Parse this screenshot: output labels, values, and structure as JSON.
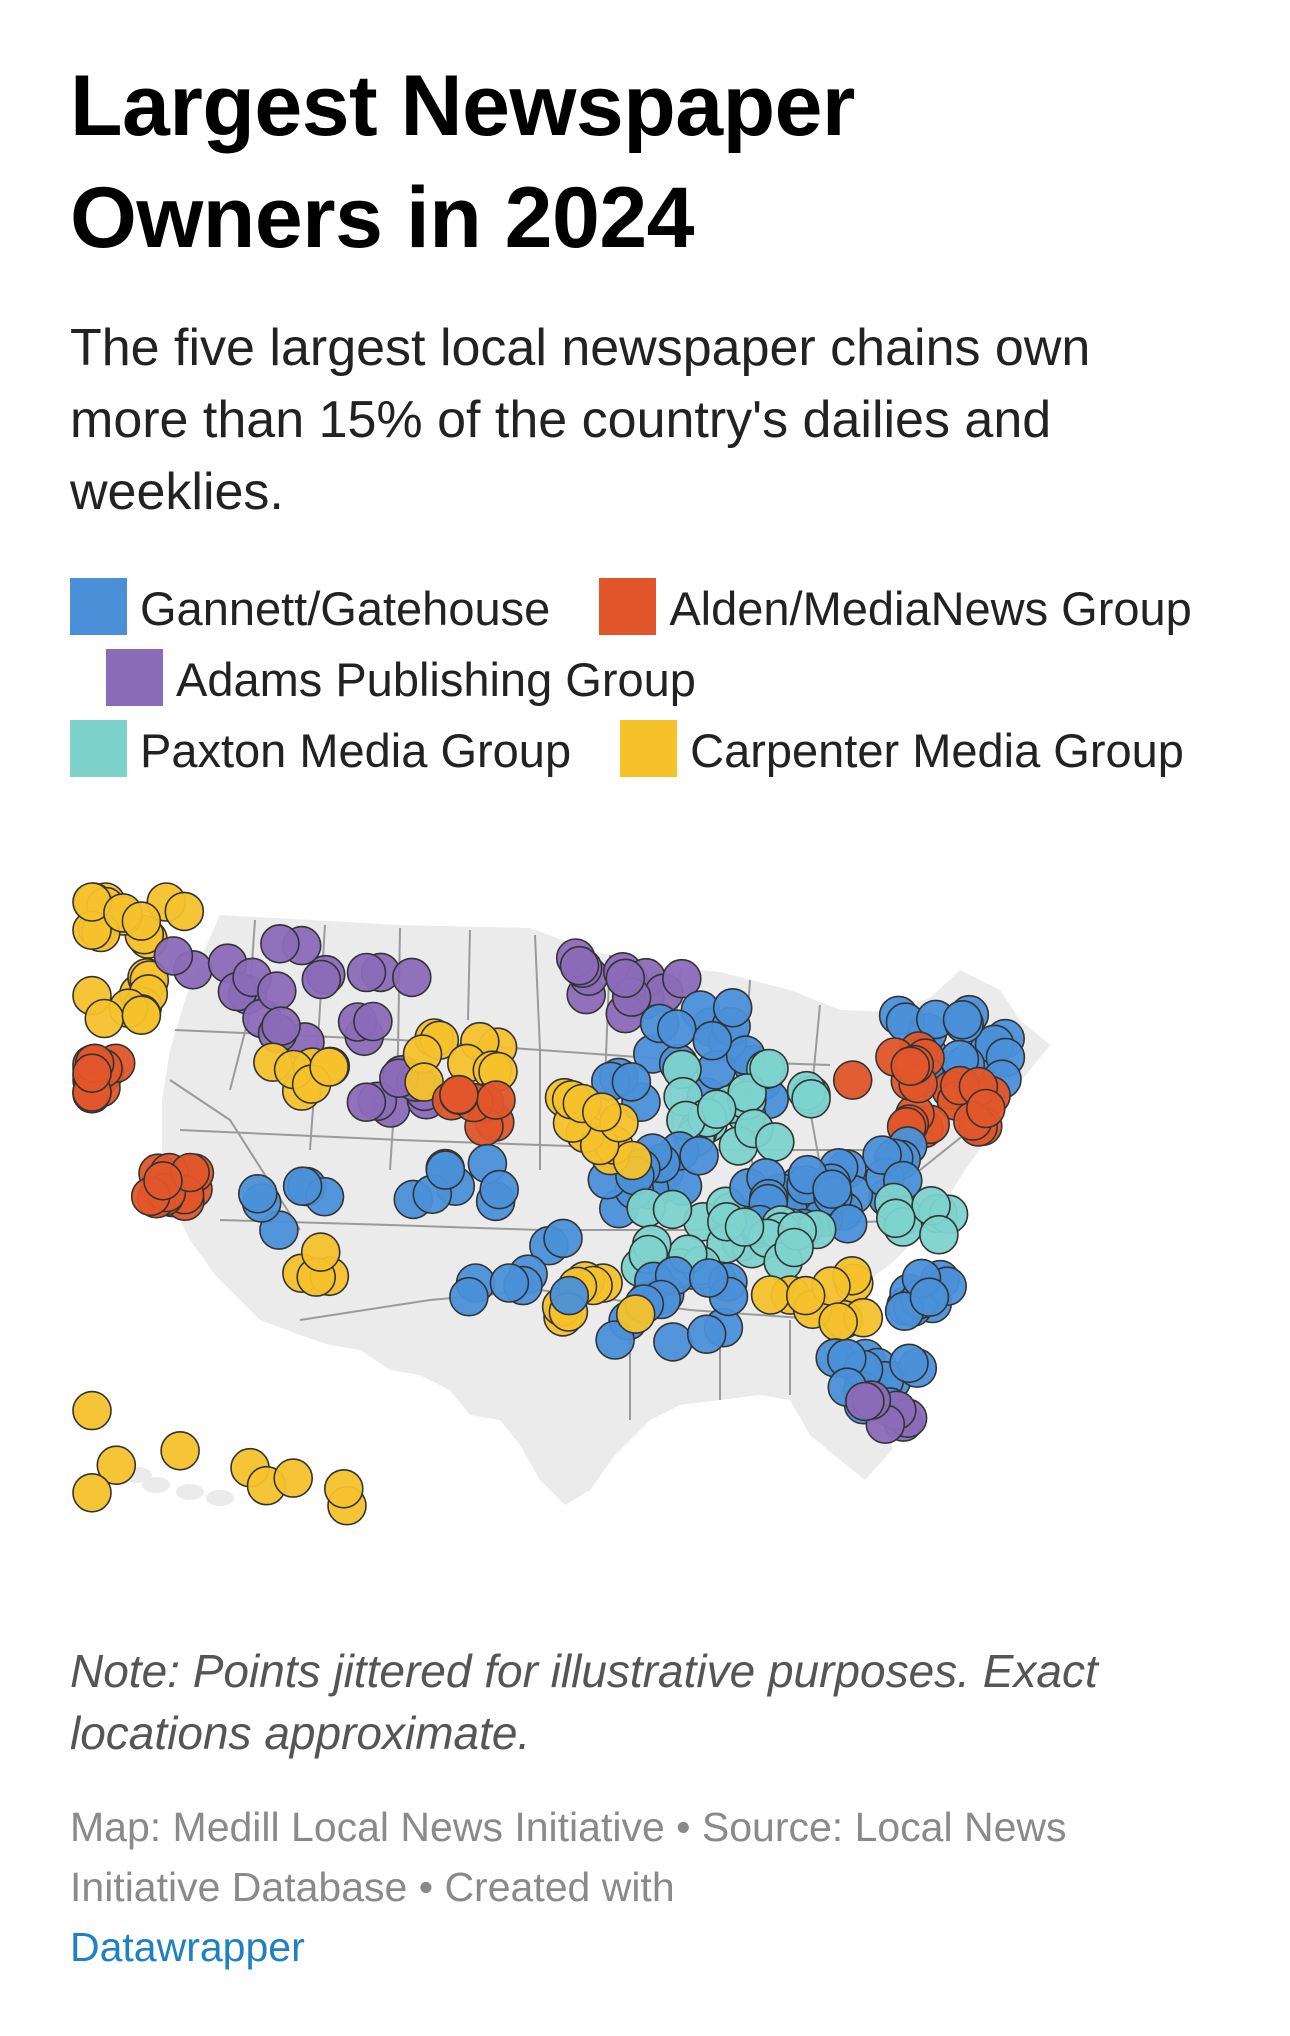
{
  "header": {
    "title": "Largest Newspaper Owners in 2024",
    "subtitle": "The five largest local newspaper chains own more than 15% of the country's dailies and weeklies."
  },
  "legend": [
    {
      "label": "Gannett/Gatehouse",
      "color": "#4a90d9"
    },
    {
      "label": "Alden/MediaNews Group",
      "color": "#e0562a"
    },
    {
      "label": "Adams Publishing Group",
      "color": "#8a6bb8"
    },
    {
      "label": "Paxton Media Group",
      "color": "#7dd3cc"
    },
    {
      "label": "Carpenter Media Group",
      "color": "#f6c22c"
    }
  ],
  "map": {
    "land_color": "#ebebeb",
    "border_color": "#9a9a9a",
    "marker_outline": "#333333"
  },
  "note": "Note: Points jittered for illustrative purposes. Exact locations approximate.",
  "footer": {
    "map_credit": "Map: Medill Local News Initiative",
    "separator": " • ",
    "source": "Source: Local News Initiative Database",
    "created_with": "Created with",
    "link_label": "Datawrapper"
  }
}
